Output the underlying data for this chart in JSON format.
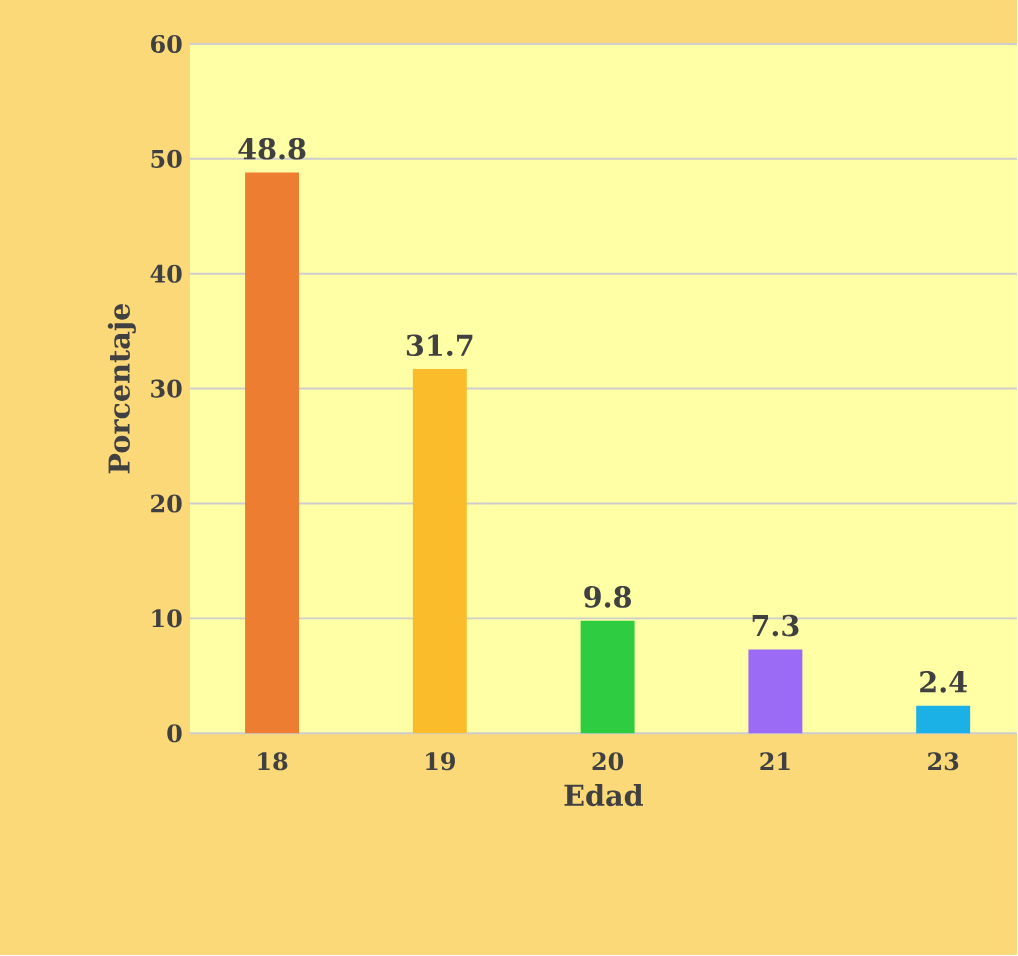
{
  "chart_data": {
    "type": "bar",
    "xlabel": "Edad",
    "ylabel": "Porcentaje",
    "categories": [
      "18",
      "19",
      "20",
      "21",
      "23"
    ],
    "values": [
      48.8,
      31.7,
      9.8,
      7.3,
      2.4
    ],
    "colors": [
      "#ed7d31",
      "#fbbc2c",
      "#2ecc40",
      "#9b6bf5",
      "#1bb0e6"
    ],
    "ylim": [
      0,
      60
    ],
    "yticks": [
      0,
      10,
      20,
      30,
      40,
      50,
      60
    ],
    "grid": "y",
    "data_labels": true
  }
}
